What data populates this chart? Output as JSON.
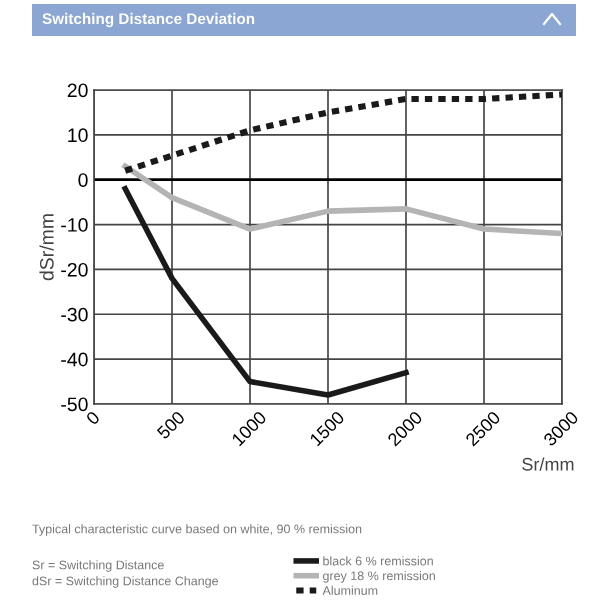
{
  "chart_data": {
    "type": "line",
    "title": "Switching Distance Deviation",
    "xlabel": "Sr/mm",
    "ylabel": "dSr/mm",
    "annotations": [
      "Typical characteristic curve based on white, 90 % remission",
      "Sr = Switching Distance",
      "dSr = Switching Distance Change"
    ],
    "series": [
      {
        "name": "black 6 % remission",
        "color": "#1a1a1a",
        "line_style": "solid",
        "x": [
          200,
          500,
          1000,
          1500,
          2000
        ],
        "values": [
          -2,
          -22,
          -45,
          -48,
          -43
        ]
      },
      {
        "name": "grey 18 % remission",
        "color": "#b4b4b4",
        "line_style": "solid",
        "x": [
          200,
          500,
          1000,
          1500,
          2000,
          2500,
          3000
        ],
        "values": [
          3,
          -4,
          -11,
          -7,
          -6.5,
          -11,
          -12
        ]
      },
      {
        "name": "Aluminum",
        "color": "#1a1a1a",
        "line_style": "dotted",
        "x": [
          200,
          1000,
          1500,
          2000,
          2500,
          3000
        ],
        "values": [
          2,
          11,
          15,
          18,
          18,
          19
        ]
      }
    ],
    "xlim": [
      0,
      3000
    ],
    "xticks": [
      0,
      500,
      1000,
      1500,
      2000,
      2500,
      3000
    ],
    "ylim": [
      -50,
      20
    ],
    "yticks": [
      -50,
      -40,
      -30,
      -20,
      -10,
      0,
      10,
      20
    ],
    "ref_lines": [
      {
        "axis": "y",
        "value": 0,
        "color": "#000000"
      }
    ],
    "grid": true,
    "legend": "bottom",
    "marker": "none"
  }
}
